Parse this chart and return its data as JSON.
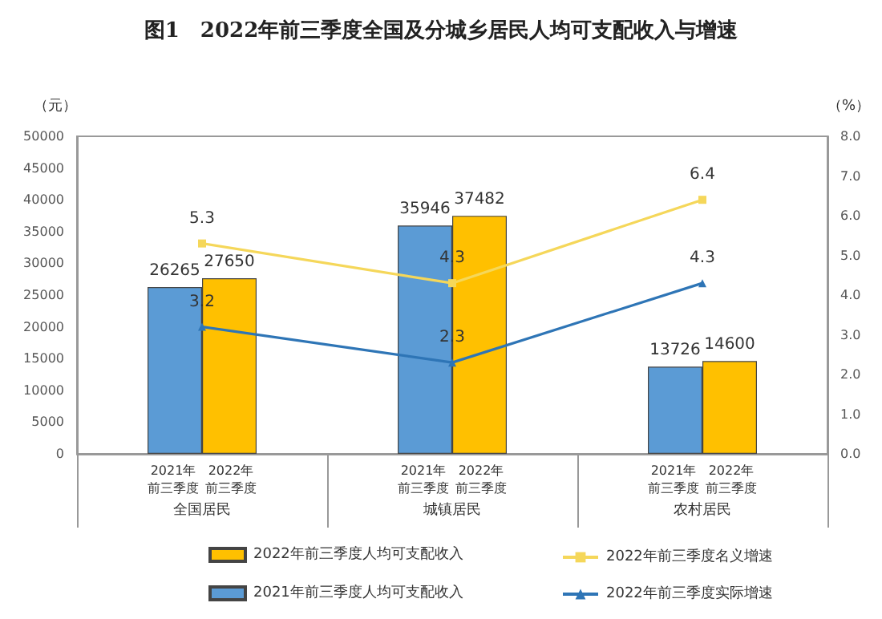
{
  "chart_data": {
    "type": "bar",
    "title": "图1　2022年前三季度全国及分城乡居民人均可支配收入与增速",
    "categories": [
      "全国居民",
      "城镇居民",
      "农村居民"
    ],
    "series": [
      {
        "name": "2021年前三季度人均可支配收入",
        "color": "#5b9bd5",
        "values": [
          26265,
          35946,
          13726
        ]
      },
      {
        "name": "2022年前三季度人均可支配收入",
        "color": "#ffc000",
        "values": [
          27650,
          37482,
          14600
        ]
      },
      {
        "name": "2022年前三季度名义增速",
        "type": "line",
        "axis": "y2",
        "marker": "square",
        "color": "#f5d75a",
        "values": [
          5.3,
          4.3,
          6.4
        ]
      },
      {
        "name": "2022年前三季度实际增速",
        "type": "line",
        "axis": "y2",
        "marker": "triangle",
        "color": "#2e75b6",
        "values": [
          3.2,
          2.3,
          4.3
        ]
      }
    ],
    "ylabel": "（元）",
    "y2label": "（%）",
    "ylim": [
      0,
      50000
    ],
    "yticks": [
      0,
      5000,
      10000,
      15000,
      20000,
      25000,
      30000,
      35000,
      40000,
      45000,
      50000
    ],
    "y2lim": [
      0,
      8
    ],
    "y2ticks": [
      {
        "value": 0,
        "label": "0.0"
      },
      {
        "value": 1,
        "label": "1.0"
      },
      {
        "value": 2,
        "label": "2.0"
      },
      {
        "value": 3,
        "label": "3.0"
      },
      {
        "value": 4,
        "label": "4.0"
      },
      {
        "value": 5,
        "label": "5.0"
      },
      {
        "value": 6,
        "label": "6.0"
      },
      {
        "value": 7,
        "label": "7.0"
      },
      {
        "value": 8,
        "label": "8.0"
      }
    ],
    "annotations": [
      "2021年前三季度",
      "2022年前三季度",
      "2021年前三季度",
      "2022年前三季度",
      "2021年前三季度",
      "2022年前三季度"
    ],
    "data_labels": true,
    "legend": "bottom",
    "grid": false
  }
}
